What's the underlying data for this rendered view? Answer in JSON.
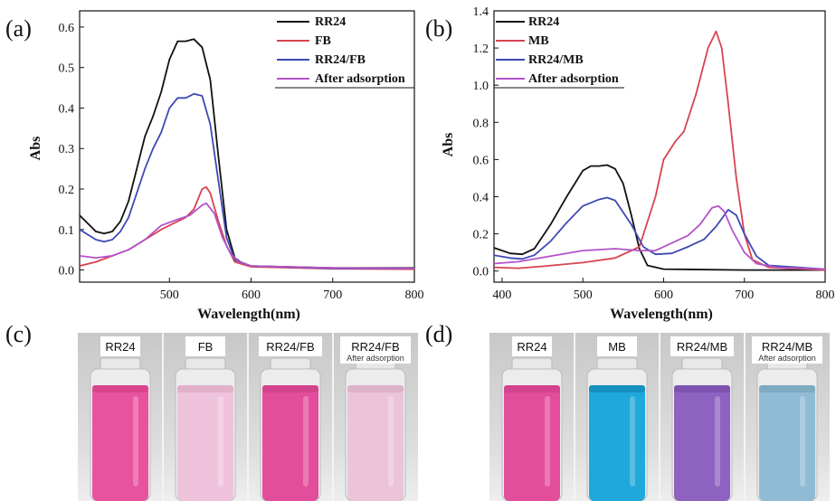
{
  "panels": {
    "a": "(a)",
    "b": "(b)",
    "c": "(c)",
    "d": "(d)"
  },
  "chart_data": [
    {
      "type": "line",
      "panel": "(a)",
      "xlabel": "Wavelength(nm)",
      "ylabel": "Abs",
      "xlim": [
        390,
        800
      ],
      "ylim": [
        -0.03,
        0.64
      ],
      "xticks": [
        500,
        600,
        700,
        800
      ],
      "yticks": [
        0.0,
        0.1,
        0.2,
        0.3,
        0.4,
        0.5,
        0.6
      ],
      "ytick_labels": [
        "0.0",
        "0.1",
        "0.2",
        "0.3",
        "0.4",
        "0.5",
        "0.6"
      ],
      "legend_position": "top-right",
      "series": [
        {
          "name": "RR24",
          "color": "#111111",
          "points": [
            [
              390,
              0.135
            ],
            [
              410,
              0.095
            ],
            [
              420,
              0.09
            ],
            [
              430,
              0.095
            ],
            [
              440,
              0.12
            ],
            [
              450,
              0.17
            ],
            [
              460,
              0.25
            ],
            [
              470,
              0.33
            ],
            [
              480,
              0.38
            ],
            [
              490,
              0.44
            ],
            [
              500,
              0.52
            ],
            [
              510,
              0.565
            ],
            [
              520,
              0.565
            ],
            [
              530,
              0.57
            ],
            [
              540,
              0.55
            ],
            [
              550,
              0.47
            ],
            [
              560,
              0.28
            ],
            [
              570,
              0.1
            ],
            [
              580,
              0.03
            ],
            [
              590,
              0.015
            ],
            [
              600,
              0.01
            ],
            [
              700,
              0.005
            ],
            [
              800,
              0.005
            ]
          ]
        },
        {
          "name": "FB",
          "color": "#d9434f",
          "points": [
            [
              390,
              0.01
            ],
            [
              410,
              0.02
            ],
            [
              430,
              0.035
            ],
            [
              450,
              0.05
            ],
            [
              470,
              0.075
            ],
            [
              490,
              0.1
            ],
            [
              510,
              0.12
            ],
            [
              520,
              0.13
            ],
            [
              530,
              0.15
            ],
            [
              540,
              0.2
            ],
            [
              545,
              0.205
            ],
            [
              550,
              0.19
            ],
            [
              560,
              0.12
            ],
            [
              570,
              0.06
            ],
            [
              580,
              0.02
            ],
            [
              600,
              0.008
            ],
            [
              700,
              0.003
            ],
            [
              800,
              0.002
            ]
          ]
        },
        {
          "name": "RR24/FB",
          "color": "#3f49b5",
          "points": [
            [
              390,
              0.1
            ],
            [
              410,
              0.075
            ],
            [
              420,
              0.07
            ],
            [
              430,
              0.075
            ],
            [
              440,
              0.095
            ],
            [
              450,
              0.13
            ],
            [
              460,
              0.19
            ],
            [
              470,
              0.25
            ],
            [
              480,
              0.3
            ],
            [
              490,
              0.34
            ],
            [
              500,
              0.4
            ],
            [
              510,
              0.425
            ],
            [
              520,
              0.425
            ],
            [
              530,
              0.435
            ],
            [
              540,
              0.43
            ],
            [
              550,
              0.36
            ],
            [
              560,
              0.22
            ],
            [
              570,
              0.08
            ],
            [
              580,
              0.025
            ],
            [
              600,
              0.01
            ],
            [
              700,
              0.004
            ],
            [
              800,
              0.004
            ]
          ]
        },
        {
          "name": "After adsorption",
          "color": "#b453c9",
          "points": [
            [
              390,
              0.035
            ],
            [
              410,
              0.03
            ],
            [
              430,
              0.035
            ],
            [
              450,
              0.05
            ],
            [
              470,
              0.075
            ],
            [
              490,
              0.11
            ],
            [
              510,
              0.125
            ],
            [
              525,
              0.135
            ],
            [
              540,
              0.16
            ],
            [
              545,
              0.165
            ],
            [
              555,
              0.14
            ],
            [
              565,
              0.08
            ],
            [
              575,
              0.04
            ],
            [
              585,
              0.02
            ],
            [
              600,
              0.01
            ],
            [
              700,
              0.005
            ],
            [
              800,
              0.004
            ]
          ]
        }
      ]
    },
    {
      "type": "line",
      "panel": "(b)",
      "xlabel": "Wavelength(nm)",
      "ylabel": "Abs",
      "xlim": [
        390,
        800
      ],
      "ylim": [
        -0.06,
        1.4
      ],
      "xticks": [
        400,
        500,
        600,
        700,
        800
      ],
      "yticks": [
        0.0,
        0.2,
        0.4,
        0.6,
        0.8,
        1.0,
        1.2,
        1.4
      ],
      "ytick_labels": [
        "0.0",
        "0.2",
        "0.4",
        "0.6",
        "0.8",
        "1.0",
        "1.2",
        "1.4"
      ],
      "legend_position": "top-left",
      "series": [
        {
          "name": "RR24",
          "color": "#111111",
          "points": [
            [
              390,
              0.125
            ],
            [
              410,
              0.095
            ],
            [
              425,
              0.09
            ],
            [
              440,
              0.12
            ],
            [
              460,
              0.25
            ],
            [
              480,
              0.4
            ],
            [
              500,
              0.54
            ],
            [
              510,
              0.565
            ],
            [
              520,
              0.565
            ],
            [
              530,
              0.57
            ],
            [
              540,
              0.55
            ],
            [
              550,
              0.47
            ],
            [
              560,
              0.3
            ],
            [
              570,
              0.12
            ],
            [
              580,
              0.03
            ],
            [
              600,
              0.01
            ],
            [
              700,
              0.005
            ],
            [
              800,
              0.005
            ]
          ]
        },
        {
          "name": "MB",
          "color": "#d9434f",
          "points": [
            [
              390,
              0.02
            ],
            [
              420,
              0.015
            ],
            [
              450,
              0.025
            ],
            [
              500,
              0.045
            ],
            [
              540,
              0.07
            ],
            [
              570,
              0.13
            ],
            [
              590,
              0.4
            ],
            [
              600,
              0.6
            ],
            [
              615,
              0.7
            ],
            [
              625,
              0.75
            ],
            [
              640,
              0.95
            ],
            [
              655,
              1.2
            ],
            [
              665,
              1.29
            ],
            [
              672,
              1.2
            ],
            [
              680,
              0.9
            ],
            [
              690,
              0.5
            ],
            [
              700,
              0.2
            ],
            [
              710,
              0.06
            ],
            [
              730,
              0.02
            ],
            [
              800,
              0.005
            ]
          ]
        },
        {
          "name": "RR24/MB",
          "color": "#3f49b5",
          "points": [
            [
              390,
              0.085
            ],
            [
              410,
              0.07
            ],
            [
              425,
              0.065
            ],
            [
              440,
              0.085
            ],
            [
              460,
              0.16
            ],
            [
              480,
              0.26
            ],
            [
              500,
              0.35
            ],
            [
              520,
              0.385
            ],
            [
              530,
              0.395
            ],
            [
              540,
              0.38
            ],
            [
              560,
              0.25
            ],
            [
              575,
              0.13
            ],
            [
              590,
              0.09
            ],
            [
              610,
              0.095
            ],
            [
              630,
              0.13
            ],
            [
              650,
              0.17
            ],
            [
              665,
              0.24
            ],
            [
              680,
              0.33
            ],
            [
              690,
              0.3
            ],
            [
              700,
              0.2
            ],
            [
              715,
              0.08
            ],
            [
              730,
              0.03
            ],
            [
              800,
              0.01
            ]
          ]
        },
        {
          "name": "After adsorption",
          "color": "#b453c9",
          "points": [
            [
              390,
              0.04
            ],
            [
              420,
              0.05
            ],
            [
              460,
              0.08
            ],
            [
              500,
              0.11
            ],
            [
              540,
              0.12
            ],
            [
              570,
              0.11
            ],
            [
              590,
              0.11
            ],
            [
              610,
              0.15
            ],
            [
              630,
              0.19
            ],
            [
              645,
              0.25
            ],
            [
              660,
              0.34
            ],
            [
              668,
              0.35
            ],
            [
              675,
              0.32
            ],
            [
              685,
              0.22
            ],
            [
              700,
              0.1
            ],
            [
              715,
              0.04
            ],
            [
              740,
              0.02
            ],
            [
              800,
              0.01
            ]
          ]
        }
      ]
    }
  ],
  "photos": [
    {
      "panel": "(c)",
      "vials": [
        {
          "label": "RR24",
          "sub": "",
          "liquid": "#e8539f",
          "liquid_top": "#d9448f"
        },
        {
          "label": "FB",
          "sub": "",
          "liquid": "#f0c3dc",
          "liquid_top": "#e3b0cc"
        },
        {
          "label": "RR24/FB",
          "sub": "",
          "liquid": "#e24e9b",
          "liquid_top": "#d3428c"
        },
        {
          "label": "RR24/FB",
          "sub": "After adsorption",
          "liquid": "#ecc4da",
          "liquid_top": "#dcb2c9"
        }
      ]
    },
    {
      "panel": "(d)",
      "vials": [
        {
          "label": "RR24",
          "sub": "",
          "liquid": "#e24e9b",
          "liquid_top": "#d3428c"
        },
        {
          "label": "MB",
          "sub": "",
          "liquid": "#1ea9da",
          "liquid_top": "#1690c0"
        },
        {
          "label": "RR24/MB",
          "sub": "",
          "liquid": "#8e62c0",
          "liquid_top": "#7d52b0"
        },
        {
          "label": "RR24/MB",
          "sub": "After adsorption",
          "liquid": "#8fbcd4",
          "liquid_top": "#7eaac2"
        }
      ]
    }
  ]
}
